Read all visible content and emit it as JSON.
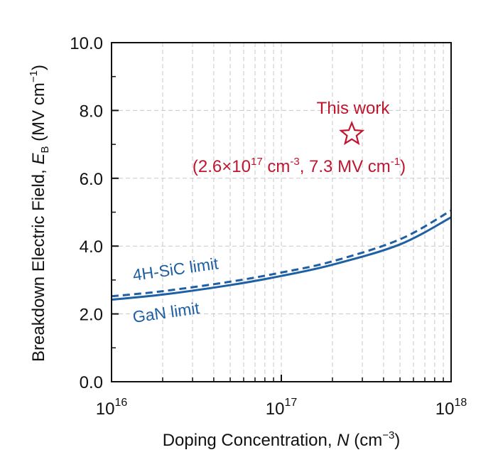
{
  "chart_data": {
    "type": "line",
    "xlabel": {
      "text": "Doping Concentration, ",
      "italic": "N",
      "rest": " (cm",
      "sup": "−3",
      "close": ")"
    },
    "ylabel": {
      "text": "Breakdown Electric Field, ",
      "italic": "E",
      "sub": "B",
      "rest": " (MV cm",
      "sup": "−1",
      "close": ")"
    },
    "x_scale": "log",
    "xlim": [
      1e+16,
      1e+18
    ],
    "ylim": [
      0,
      10
    ],
    "x_ticks": [
      {
        "value": 1e+16,
        "base": "10",
        "exp": "16"
      },
      {
        "value": 1e+17,
        "base": "10",
        "exp": "17"
      },
      {
        "value": 1e+18,
        "base": "10",
        "exp": "18"
      }
    ],
    "y_ticks": [
      {
        "value": 0,
        "label": "0.0"
      },
      {
        "value": 2,
        "label": "2.0"
      },
      {
        "value": 4,
        "label": "4.0"
      },
      {
        "value": 6,
        "label": "6.0"
      },
      {
        "value": 8,
        "label": "8.0"
      },
      {
        "value": 10,
        "label": "10.0"
      }
    ],
    "grid": true,
    "series": [
      {
        "name": "4H-SiC limit",
        "style": "dashed",
        "color": "#1f5fa3",
        "points": [
          [
            1e+16,
            2.52
          ],
          [
            2e+16,
            2.67
          ],
          [
            5e+16,
            2.95
          ],
          [
            1e+17,
            3.22
          ],
          [
            2e+17,
            3.55
          ],
          [
            5e+17,
            4.2
          ],
          [
            1e+18,
            5.05
          ]
        ]
      },
      {
        "name": "GaN limit",
        "style": "solid",
        "color": "#1f5fa3",
        "points": [
          [
            1e+16,
            2.42
          ],
          [
            2e+16,
            2.57
          ],
          [
            5e+16,
            2.85
          ],
          [
            1e+17,
            3.12
          ],
          [
            2e+17,
            3.45
          ],
          [
            5e+17,
            4.05
          ],
          [
            1e+18,
            4.85
          ]
        ]
      }
    ],
    "highlight_point": {
      "x": 2.6e+17,
      "y": 7.3,
      "marker": "star",
      "color": "#c0152f",
      "title": "This work",
      "label": {
        "open": "(2.6×10",
        "sup1": "17",
        "mid1": " cm",
        "sup2": "-3",
        "mid2": ", 7.3 MV cm",
        "sup3": "-1",
        "close": ")"
      }
    }
  }
}
